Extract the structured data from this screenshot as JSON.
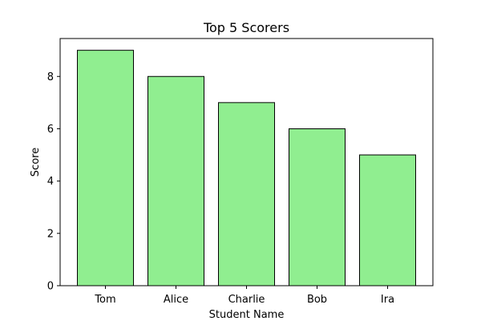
{
  "chart_data": {
    "type": "bar",
    "title": "Top 5 Scorers",
    "xlabel": "Student Name",
    "ylabel": "Score",
    "categories": [
      "Tom",
      "Alice",
      "Charlie",
      "Bob",
      "Ira"
    ],
    "values": [
      9,
      8,
      7,
      6,
      5
    ],
    "ylim": [
      0,
      9.45
    ],
    "yticks": [
      0,
      2,
      4,
      6,
      8
    ],
    "bar_color": "#90ee90",
    "bar_edge_color": "#000000",
    "grid": false,
    "legend": "none"
  }
}
